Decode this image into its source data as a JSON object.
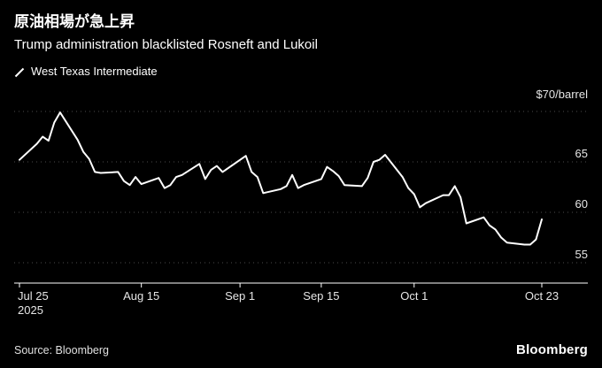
{
  "header": {
    "title": "原油相場が急上昇",
    "subtitle": "Trump administration blacklisted Rosneft and Lukoil",
    "legend": [
      {
        "label": "West Texas Intermediate",
        "color": "#ffffff"
      }
    ]
  },
  "chart_data": {
    "type": "line",
    "title": "原油相場が急上昇",
    "subtitle": "Trump administration blacklisted Rosneft and Lukoil",
    "unit_label": "$70/barrel",
    "background": "#000000",
    "grid": "horizontal-dotted",
    "grid_color": "#4d4d4d",
    "axis_color": "#ffffff",
    "legend_position": "top-left",
    "y_axis": {
      "side": "right",
      "min": 55,
      "max": 70,
      "gridlines": [
        70,
        65,
        60,
        55
      ],
      "labels": [
        {
          "value": 65,
          "text": "65"
        },
        {
          "value": 60,
          "text": "60"
        },
        {
          "value": 55,
          "text": "55"
        }
      ]
    },
    "x_ticks": [
      {
        "day": 0,
        "label": "Jul 25",
        "sublabel": "2025",
        "align": "start"
      },
      {
        "day": 21,
        "label": "Aug 15"
      },
      {
        "day": 38,
        "label": "Sep 1"
      },
      {
        "day": 52,
        "label": "Sep 15"
      },
      {
        "day": 68,
        "label": "Oct 1"
      },
      {
        "day": 90,
        "label": "Oct 23"
      }
    ],
    "series": [
      {
        "name": "West Texas Intermediate",
        "color": "#ffffff",
        "x_days_from_start": [
          0,
          3,
          4,
          5,
          6,
          7,
          10,
          11,
          12,
          13,
          14,
          17,
          18,
          19,
          20,
          21,
          24,
          25,
          26,
          27,
          28,
          31,
          32,
          33,
          34,
          35,
          39,
          40,
          41,
          42,
          45,
          46,
          47,
          48,
          49,
          52,
          53,
          54,
          55,
          56,
          59,
          60,
          61,
          62,
          63,
          66,
          67,
          68,
          69,
          70,
          73,
          74,
          75,
          76,
          77,
          80,
          81,
          82,
          83,
          84,
          87,
          88,
          89,
          90
        ],
        "values": [
          65.2,
          66.8,
          67.5,
          67.1,
          68.9,
          69.9,
          67.2,
          66.0,
          65.3,
          64.0,
          63.9,
          64.0,
          63.1,
          62.7,
          63.5,
          62.8,
          63.4,
          62.4,
          62.7,
          63.5,
          63.7,
          64.8,
          63.3,
          64.2,
          64.6,
          64.0,
          65.6,
          64.0,
          63.5,
          61.9,
          62.3,
          62.6,
          63.7,
          62.4,
          62.7,
          63.3,
          64.5,
          64.1,
          63.6,
          62.7,
          62.6,
          63.4,
          65.0,
          65.2,
          65.7,
          63.5,
          62.4,
          61.8,
          60.5,
          60.9,
          61.7,
          61.7,
          62.6,
          61.5,
          58.9,
          59.5,
          58.7,
          58.3,
          57.5,
          57.0,
          56.8,
          56.8,
          57.3,
          59.3
        ]
      }
    ]
  },
  "footer": {
    "source": "Source: Bloomberg",
    "logo": "Bloomberg"
  }
}
